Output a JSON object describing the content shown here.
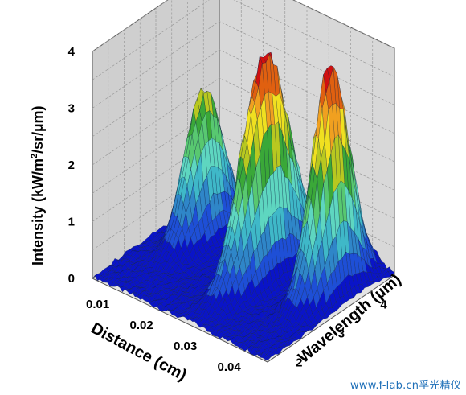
{
  "chart_data": {
    "type": "surface3d",
    "title": "",
    "zlabel": "Intensity (kW/m²/sr/µm)",
    "zlabel_parts": {
      "main": "Intensity (kW/m",
      "sup": "2",
      "tail": "/sr/µm)"
    },
    "xlabel": "Distance (cm)",
    "ylabel": "Wavelength (µm)",
    "zlim": [
      0,
      4
    ],
    "xlim": [
      0.005,
      0.045
    ],
    "ylim": [
      1.6,
      4.6
    ],
    "z_ticks": [
      "0",
      "1",
      "2",
      "3",
      "4"
    ],
    "x_ticks": [
      "0.01",
      "0.02",
      "0.03",
      "0.04"
    ],
    "y_ticks": [
      "2",
      "3",
      "4"
    ],
    "grid": true,
    "colormap": [
      "#0a14c8",
      "#1e4fd6",
      "#2f86c8",
      "#3fb8c8",
      "#5ed6c0",
      "#58c870",
      "#3aa838",
      "#b8c820",
      "#f0e020",
      "#f0a020",
      "#e06010",
      "#d01010"
    ],
    "peaks": [
      {
        "distance": 0.012,
        "wavelength": 3.5,
        "intensity": 2.6
      },
      {
        "distance": 0.028,
        "wavelength": 3.3,
        "intensity": 3.9
      },
      {
        "distance": 0.04,
        "wavelength": 3.6,
        "intensity": 4.0
      }
    ]
  },
  "watermark": "www.f-lab.cn孚光精仪"
}
